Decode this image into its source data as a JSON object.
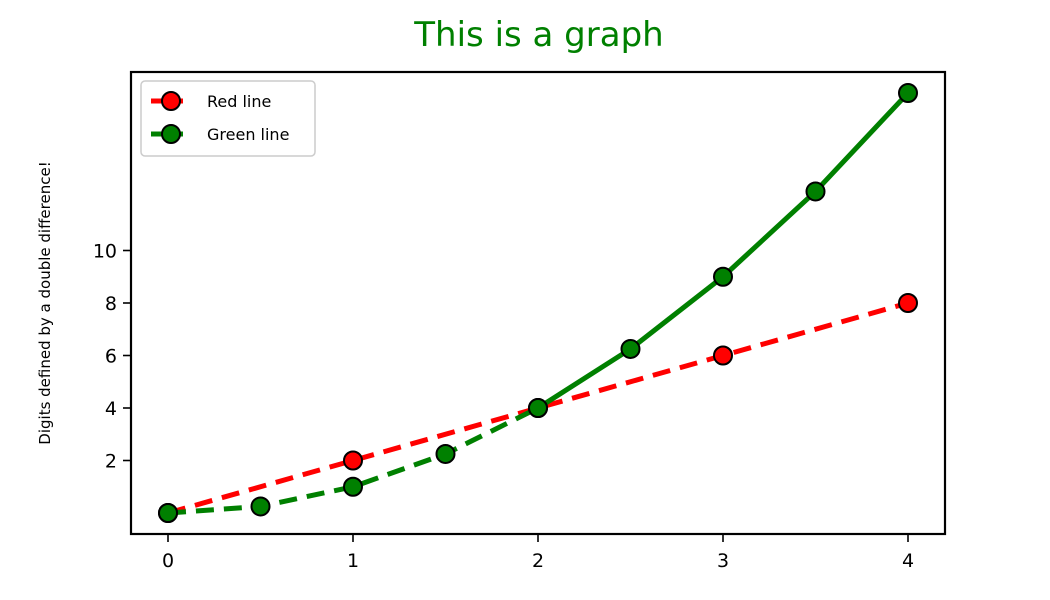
{
  "chart_data": {
    "type": "line",
    "title": "This is a graph",
    "xlabel": "",
    "ylabel": "Digits defined by a double difference!",
    "xlim": [
      -0.2,
      4.2
    ],
    "ylim": [
      -0.8,
      16.8
    ],
    "xticks": [
      0,
      1,
      2,
      3,
      4
    ],
    "yticks": [
      2,
      4,
      6,
      8,
      10
    ],
    "grid": false,
    "legend_position": "top-left",
    "series": [
      {
        "name": "Red line",
        "color": "#ff0000",
        "line_style": "dashed",
        "marker": "circle",
        "x": [
          0,
          1,
          2,
          3,
          4
        ],
        "y": [
          0,
          2,
          4,
          6,
          8
        ]
      },
      {
        "name": "Green line",
        "color": "#008000",
        "line_style": "dashed-then-solid",
        "marker": "circle",
        "x": [
          0,
          0.5,
          1,
          1.5,
          2,
          2.5,
          3,
          3.5,
          4
        ],
        "y": [
          0,
          0.25,
          1,
          2.25,
          4,
          6.25,
          9,
          12.25,
          16
        ]
      }
    ],
    "colors": {
      "title": "#008000",
      "marker_edge": "#000000"
    }
  }
}
